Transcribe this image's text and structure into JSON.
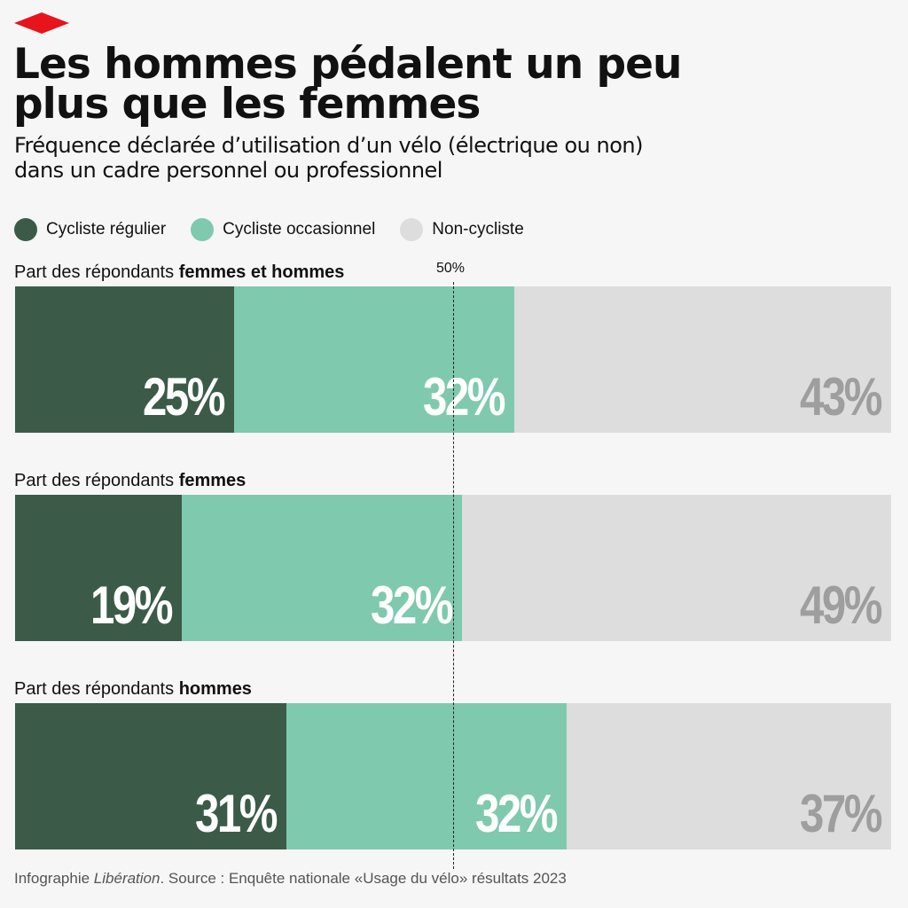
{
  "title_lines": [
    "Les hommes pédalent un peu",
    "plus que les femmes"
  ],
  "subtitle_lines": [
    "Fréquence déclarée d’utilisation d’un vélo (électrique ou non)",
    "dans un cadre personnel ou professionnel"
  ],
  "footer": {
    "prefix": "Infographie ",
    "brand": "Libération",
    "suffix": ". Source : Enquête nationale «Usage du vélo» résultats 2023"
  },
  "chart_data": {
    "type": "bar",
    "orientation": "horizontal-stacked-100",
    "legend_placement": "top-left",
    "series": [
      {
        "name": "Cycliste régulier",
        "color": "#3b5b48",
        "label_color": "#ffffff",
        "values": [
          25,
          19,
          31
        ]
      },
      {
        "name": "Cycliste occasionnel",
        "color": "#7fc9af",
        "label_color": "#ffffff",
        "values": [
          32,
          32,
          32
        ]
      },
      {
        "name": "Non-cycliste",
        "color": "#dddddd",
        "label_color": "#9e9e9e",
        "values": [
          43,
          49,
          37
        ]
      }
    ],
    "groups": [
      {
        "prefix": "Part des répondants ",
        "bold": "femmes et hommes"
      },
      {
        "prefix": "Part des répondants ",
        "bold": "femmes"
      },
      {
        "prefix": "Part des répondants ",
        "bold": "hommes"
      }
    ],
    "reference_line": {
      "value": 50,
      "label": "50%"
    },
    "xlim": [
      0,
      100
    ]
  }
}
